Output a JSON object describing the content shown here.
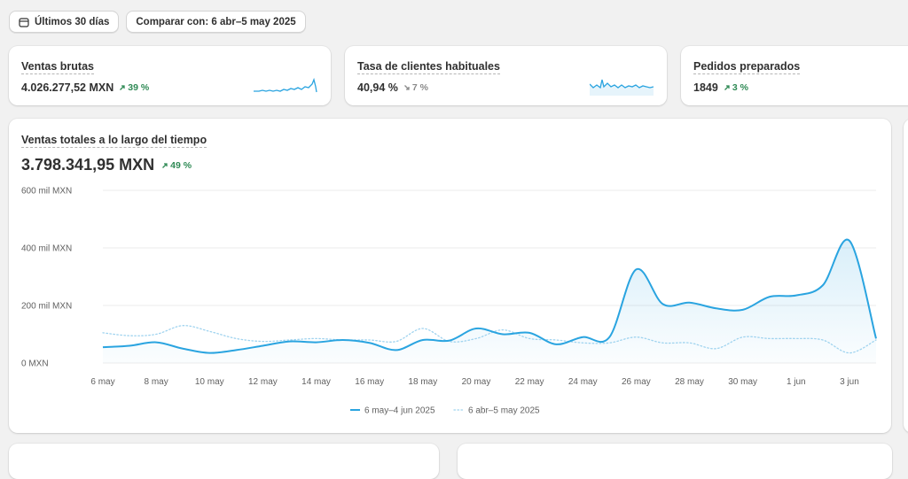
{
  "toolbar": {
    "date_range_label": "Últimos 30 días",
    "compare_label": "Comparar con: 6 abr–5 may 2025"
  },
  "kpis": [
    {
      "title": "Ventas brutas",
      "value": "4.026.277,52 MXN",
      "delta": "39 %",
      "direction": "up"
    },
    {
      "title": "Tasa de clientes habituales",
      "value": "40,94 %",
      "delta": "7 %",
      "direction": "down"
    },
    {
      "title": "Pedidos preparados",
      "value": "1849",
      "delta": "3 %",
      "direction": "up"
    }
  ],
  "main": {
    "title": "Ventas totales a lo largo del tiempo",
    "value": "3.798.341,95 MXN",
    "delta": "49 %",
    "direction": "up"
  },
  "colors": {
    "primary_series": "#2aa4e0",
    "comparison_series": "#9fd3ef",
    "positive": "#2f8a55",
    "neutral": "#8a8a8a"
  },
  "chart_data": {
    "type": "line",
    "y_ticks": [
      "0 MXN",
      "200 mil MXN",
      "400 mil MXN",
      "600 mil MXN"
    ],
    "ylim": [
      0,
      600000
    ],
    "x_tick_labels": [
      "6 may",
      "8 may",
      "10 may",
      "12 may",
      "14 may",
      "16 may",
      "18 may",
      "20 may",
      "22 may",
      "24 may",
      "26 may",
      "28 may",
      "30 may",
      "1 jun",
      "3 jun"
    ],
    "grid": true,
    "legend_position": "bottom",
    "series": [
      {
        "name": "6 may–4 jun 2025",
        "style": "solid",
        "x": [
          "6 may",
          "7 may",
          "8 may",
          "9 may",
          "10 may",
          "11 may",
          "12 may",
          "13 may",
          "14 may",
          "15 may",
          "16 may",
          "17 may",
          "18 may",
          "19 may",
          "20 may",
          "21 may",
          "22 may",
          "23 may",
          "24 may",
          "25 may",
          "26 may",
          "27 may",
          "28 may",
          "29 may",
          "30 may",
          "31 may",
          "1 jun",
          "2 jun",
          "3 jun",
          "4 jun"
        ],
        "values": [
          55000,
          60000,
          72000,
          50000,
          35000,
          45000,
          60000,
          75000,
          72000,
          80000,
          70000,
          45000,
          80000,
          78000,
          120000,
          100000,
          105000,
          65000,
          90000,
          90000,
          325000,
          205000,
          210000,
          190000,
          185000,
          230000,
          235000,
          270000,
          425000,
          85000
        ]
      },
      {
        "name": "6 abr–5 may 2025",
        "style": "dotted",
        "x": [
          "6 may",
          "7 may",
          "8 may",
          "9 may",
          "10 may",
          "11 may",
          "12 may",
          "13 may",
          "14 may",
          "15 may",
          "16 may",
          "17 may",
          "18 may",
          "19 may",
          "20 may",
          "21 may",
          "22 may",
          "23 may",
          "24 may",
          "25 may",
          "26 may",
          "27 may",
          "28 may",
          "29 may",
          "30 may",
          "31 may",
          "1 jun",
          "2 jun",
          "3 jun",
          "4 jun"
        ],
        "values": [
          105000,
          95000,
          100000,
          130000,
          110000,
          85000,
          75000,
          80000,
          85000,
          80000,
          80000,
          75000,
          120000,
          75000,
          85000,
          115000,
          85000,
          80000,
          70000,
          70000,
          90000,
          70000,
          70000,
          50000,
          90000,
          85000,
          85000,
          80000,
          35000,
          80000
        ]
      }
    ]
  }
}
